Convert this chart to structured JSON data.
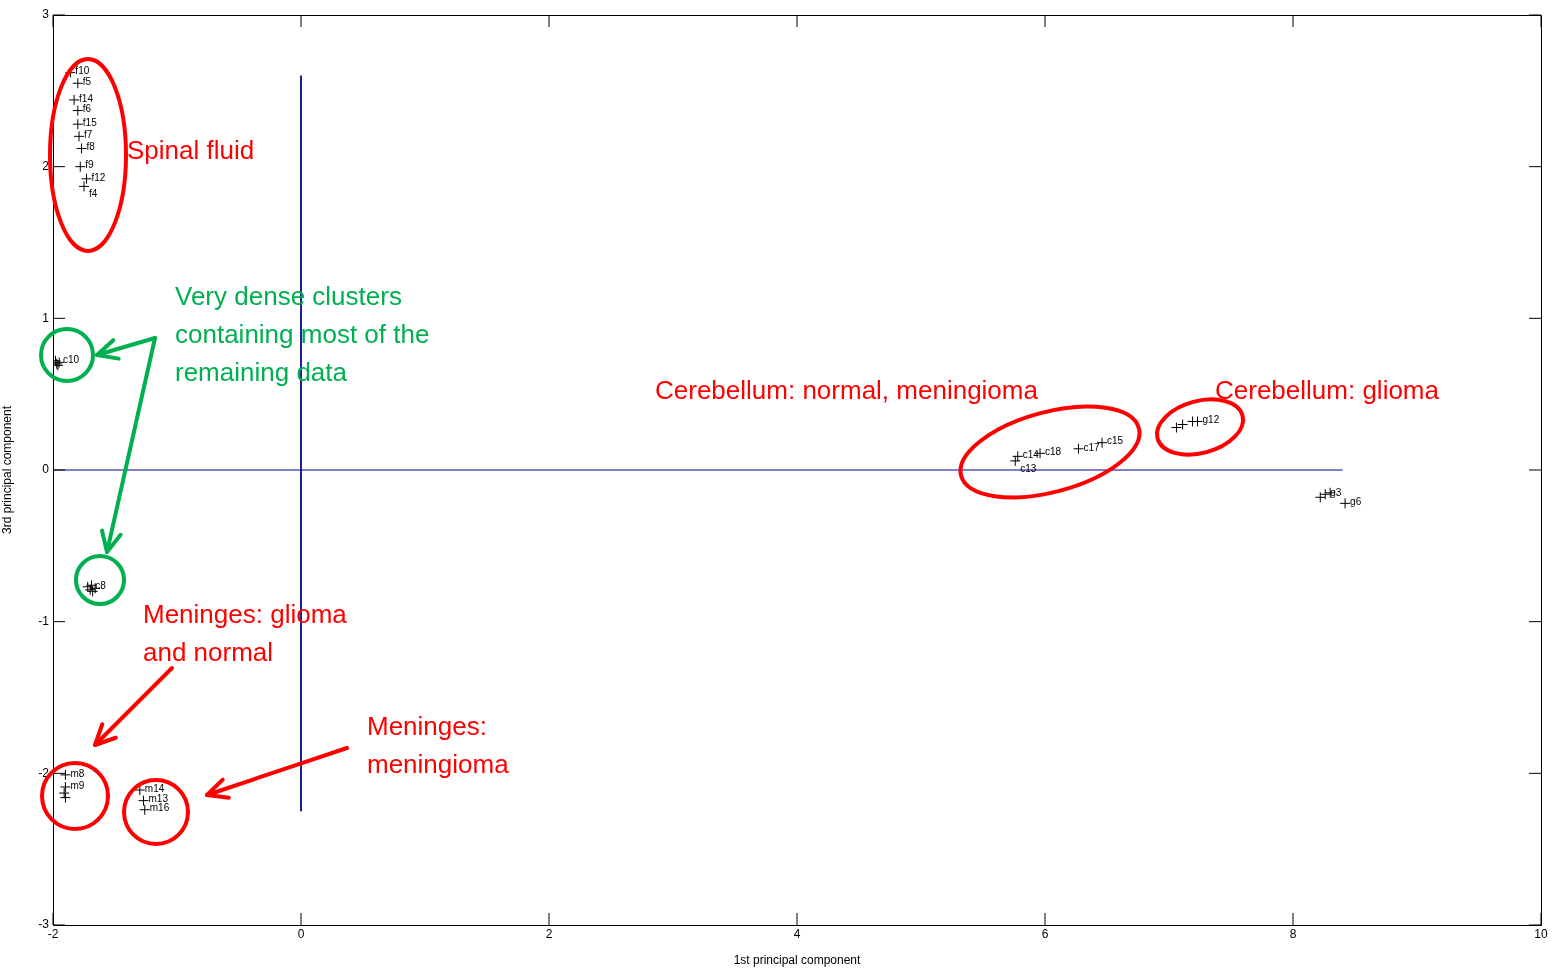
{
  "chart_data": {
    "type": "scatter",
    "xlabel": "1st principal component",
    "ylabel": "3rd principal component",
    "xlim": [
      -2,
      10
    ],
    "ylim": [
      -3,
      3
    ],
    "xticks": [
      -2,
      0,
      2,
      4,
      6,
      8,
      10
    ],
    "yticks": [
      -3,
      -2,
      -1,
      0,
      1,
      2,
      3
    ],
    "grid": false,
    "legend": false,
    "marker": "cross",
    "series": [
      {
        "type": "line",
        "color": "#00008b",
        "x": [
          -2,
          8.4
        ],
        "values": [
          0,
          0
        ],
        "marker": "none"
      },
      {
        "type": "line",
        "color": "#00008b",
        "x": [
          0,
          0
        ],
        "values": [
          2.6,
          -2.25
        ],
        "marker": "none"
      },
      {
        "type": "scatter",
        "color": "#000000",
        "x": [
          -1.86,
          -1.8,
          -1.83,
          -1.8,
          -1.8,
          -1.79,
          -1.77,
          -1.78,
          -1.73,
          -1.75,
          -1.98,
          -1.97,
          -1.96,
          -1.95,
          -1.72,
          -1.7,
          -1.68,
          -1.66,
          -1.69,
          -1.9,
          -1.9,
          -1.91,
          -1.9,
          -1.3,
          -1.27,
          -1.26,
          5.76,
          5.78,
          5.96,
          6.27,
          6.46,
          7.06,
          7.11,
          7.19,
          7.23,
          8.22,
          8.26,
          8.3,
          8.42
        ],
        "values": [
          2.62,
          2.55,
          2.44,
          2.37,
          2.28,
          2.2,
          2.12,
          2.0,
          1.92,
          1.87,
          0.72,
          0.7,
          0.69,
          0.71,
          -0.77,
          -0.79,
          -0.8,
          -0.78,
          -0.76,
          -2.01,
          -2.09,
          -2.13,
          -2.16,
          -2.11,
          -2.18,
          -2.24,
          0.06,
          0.09,
          0.11,
          0.14,
          0.18,
          0.28,
          0.3,
          0.32,
          0.32,
          -0.18,
          -0.16,
          -0.15,
          -0.22
        ]
      }
    ],
    "annotations": [
      {
        "text": "f10",
        "x": -1.86,
        "y": 2.62
      },
      {
        "text": "f5",
        "x": -1.8,
        "y": 2.55
      },
      {
        "text": "f14",
        "x": -1.83,
        "y": 2.44
      },
      {
        "text": "f6",
        "x": -1.8,
        "y": 2.37
      },
      {
        "text": "f15",
        "x": -1.8,
        "y": 2.28
      },
      {
        "text": "f7",
        "x": -1.79,
        "y": 2.2
      },
      {
        "text": "f8",
        "x": -1.77,
        "y": 2.12
      },
      {
        "text": "f9",
        "x": -1.78,
        "y": 2.0
      },
      {
        "text": "f12",
        "x": -1.73,
        "y": 1.92
      },
      {
        "text": "f4",
        "x": -1.75,
        "y": 1.87
      },
      {
        "text": "c10",
        "x": -1.96,
        "y": 0.72
      },
      {
        "text": "c8",
        "x": -1.7,
        "y": -0.77
      },
      {
        "text": "m8",
        "x": -1.9,
        "y": -2.01
      },
      {
        "text": "m9",
        "x": -1.9,
        "y": -2.09
      },
      {
        "text": "m14",
        "x": -1.3,
        "y": -2.11
      },
      {
        "text": "m13",
        "x": -1.27,
        "y": -2.18
      },
      {
        "text": "m16",
        "x": -1.26,
        "y": -2.24
      },
      {
        "text": "c14",
        "x": 5.78,
        "y": 0.09
      },
      {
        "text": "c13",
        "x": 5.76,
        "y": 0.06
      },
      {
        "text": "c18",
        "x": 5.96,
        "y": 0.11
      },
      {
        "text": "c17",
        "x": 6.27,
        "y": 0.14
      },
      {
        "text": "c15",
        "x": 6.46,
        "y": 0.18
      },
      {
        "text": "g12",
        "x": 7.23,
        "y": 0.32
      },
      {
        "text": "g3",
        "x": 8.26,
        "y": -0.16
      },
      {
        "text": "g6",
        "x": 8.42,
        "y": -0.22
      },
      "Spinal fluid",
      "Very dense clusters\ncontaining most of the\nremaining data",
      "Cerebellum: normal, meningioma",
      "Cerebellum: glioma",
      "Meninges: glioma\nand normal",
      "Meninges:\nmeningioma"
    ]
  }
}
